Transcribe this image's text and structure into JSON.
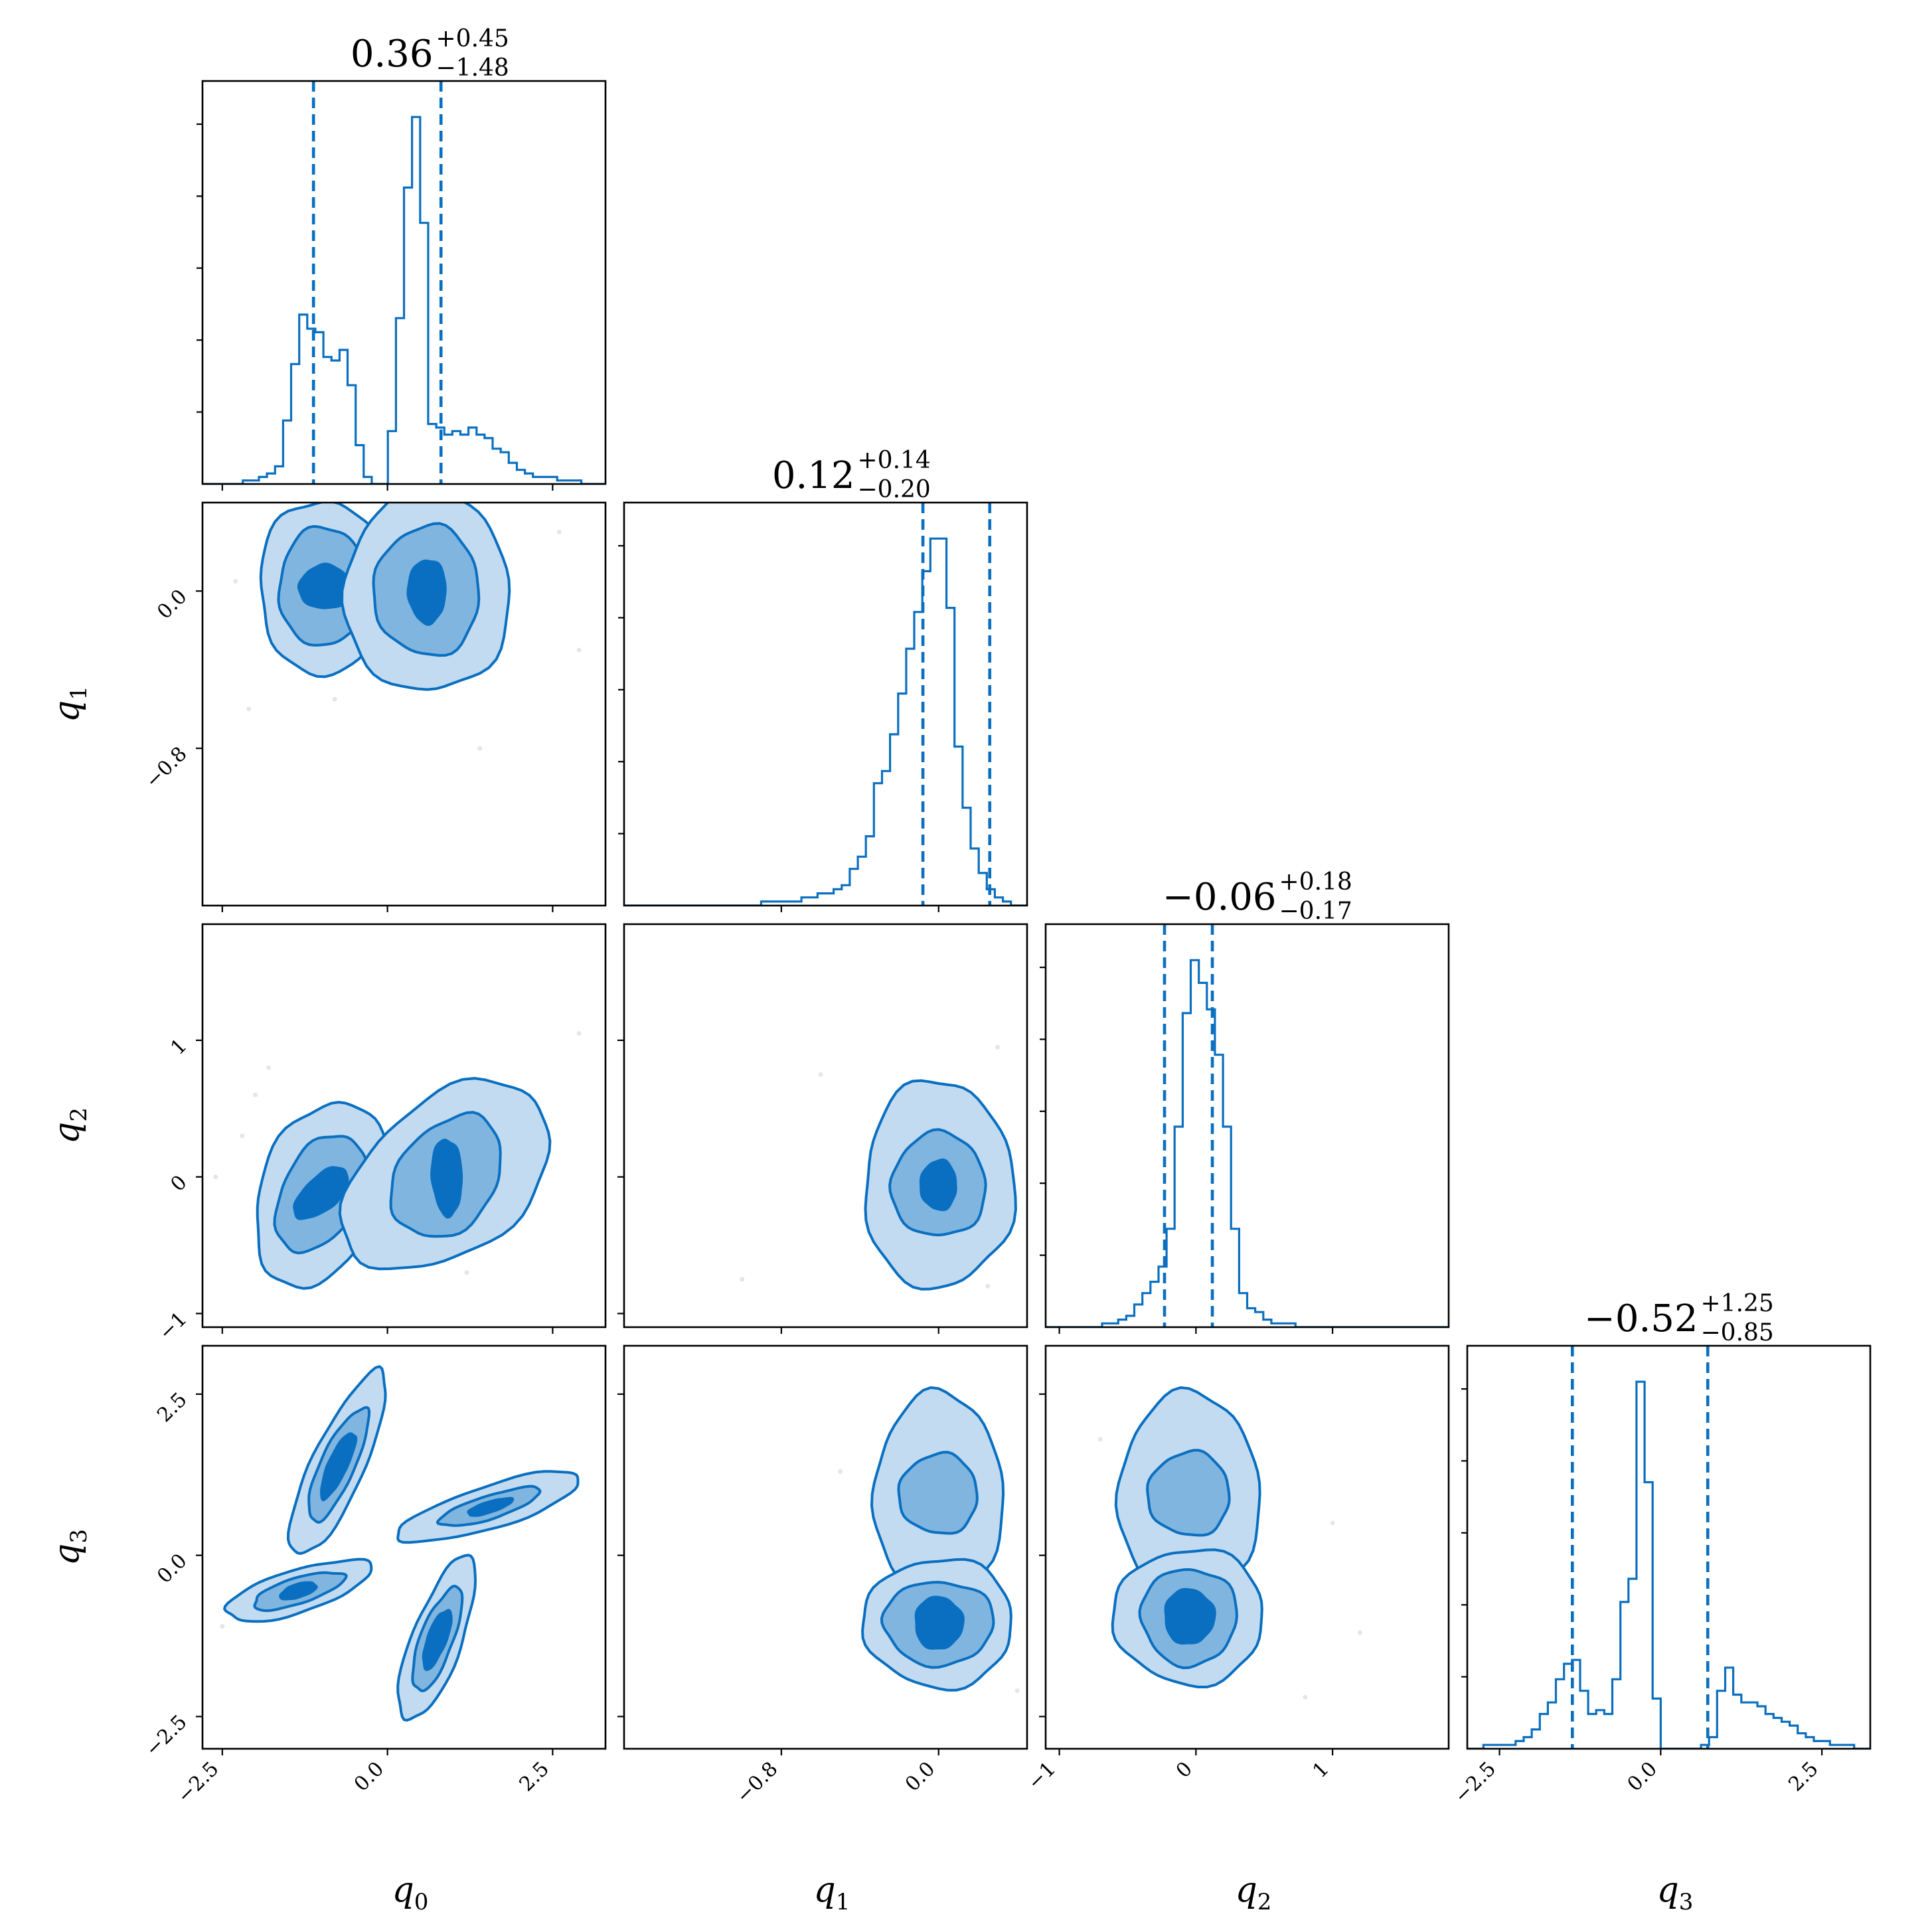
{
  "chart_data": {
    "type": "corner",
    "colors": {
      "line": "#0a6fc0",
      "fill_outer": "#c2dbf0",
      "fill_mid": "#80b5df",
      "fill_inner": "#0a6fc0",
      "points": "#e6e6e6"
    },
    "params": [
      {
        "name": "q",
        "sub": "0",
        "range": [
          -2.8,
          3.3
        ],
        "ticks": [
          -2.5,
          0.0,
          2.5
        ],
        "tick_labels": [
          "−2.5",
          "0.0",
          "2.5"
        ]
      },
      {
        "name": "q",
        "sub": "1",
        "range": [
          -1.6,
          0.45
        ],
        "ticks": [
          -0.8,
          0.0
        ],
        "tick_labels": [
          "−0.8",
          "0.0"
        ]
      },
      {
        "name": "q",
        "sub": "2",
        "range": [
          -1.1,
          1.85
        ],
        "ticks": [
          -1,
          0,
          1
        ],
        "tick_labels": [
          "−1",
          "0",
          "1"
        ]
      },
      {
        "name": "q",
        "sub": "3",
        "range": [
          -3.0,
          3.25
        ],
        "ticks": [
          -2.5,
          0.0,
          2.5
        ],
        "tick_labels": [
          "−2.5",
          "0.0",
          "2.5"
        ]
      }
    ],
    "titles": [
      {
        "value": "0.36",
        "plus": "+0.45",
        "minus": "−1.48"
      },
      {
        "value": "0.12",
        "plus": "+0.14",
        "minus": "−0.20"
      },
      {
        "value": "−0.06",
        "plus": "+0.18",
        "minus": "−0.17"
      },
      {
        "value": "−0.52",
        "plus": "+1.25",
        "minus": "−0.85"
      }
    ],
    "quantiles": [
      [
        -1.12,
        0.81
      ],
      [
        -0.08,
        0.26
      ],
      [
        -0.23,
        0.12
      ],
      [
        -1.37,
        0.73
      ]
    ],
    "histograms": [
      {
        "edges_start": -2.8,
        "bin_width": 0.122,
        "counts": [
          0,
          0,
          0,
          0,
          0,
          1,
          1,
          2,
          3,
          5,
          18,
          34,
          48,
          44,
          43,
          36,
          35,
          38,
          28,
          11,
          2,
          0,
          0,
          15,
          47,
          84,
          104,
          74,
          17,
          16,
          14,
          15,
          14,
          16,
          14,
          13,
          10,
          9,
          6,
          4,
          3,
          2,
          2,
          2,
          1,
          1,
          1,
          0,
          0,
          0
        ]
      },
      {
        "edges_start": -1.6,
        "bin_width": 0.041,
        "counts": [
          0,
          0,
          0,
          0,
          0,
          0,
          0,
          0,
          0,
          0,
          0,
          0,
          0,
          0,
          0,
          0,
          0,
          1,
          1,
          1,
          1,
          1,
          2,
          2,
          3,
          3,
          4,
          5,
          9,
          12,
          17,
          30,
          33,
          42,
          52,
          63,
          72,
          82,
          90,
          90,
          73,
          39,
          24,
          14,
          8,
          4,
          2,
          1,
          0,
          0
        ]
      },
      {
        "edges_start": -1.1,
        "bin_width": 0.059,
        "counts": [
          0,
          0,
          0,
          0,
          0,
          0,
          0,
          1,
          1,
          2,
          3,
          6,
          9,
          12,
          16,
          26,
          53,
          83,
          97,
          91,
          84,
          72,
          53,
          26,
          9,
          5,
          4,
          2,
          1,
          1,
          1,
          0,
          0,
          0,
          0,
          0,
          0,
          0,
          0,
          0,
          0,
          0,
          0,
          0,
          0,
          0,
          0,
          0,
          0,
          0
        ]
      },
      {
        "edges_start": -3.0,
        "bin_width": 0.125,
        "counts": [
          0,
          0,
          1,
          1,
          1,
          1,
          2,
          3,
          5,
          9,
          12,
          18,
          22,
          23,
          15,
          9,
          10,
          9,
          18,
          38,
          44,
          95,
          69,
          13,
          0,
          0,
          0,
          0,
          0,
          1,
          3,
          15,
          21,
          14,
          12,
          12,
          11,
          9,
          8,
          7,
          6,
          4,
          3,
          2,
          2,
          1,
          1,
          1,
          0,
          0
        ]
      }
    ]
  }
}
